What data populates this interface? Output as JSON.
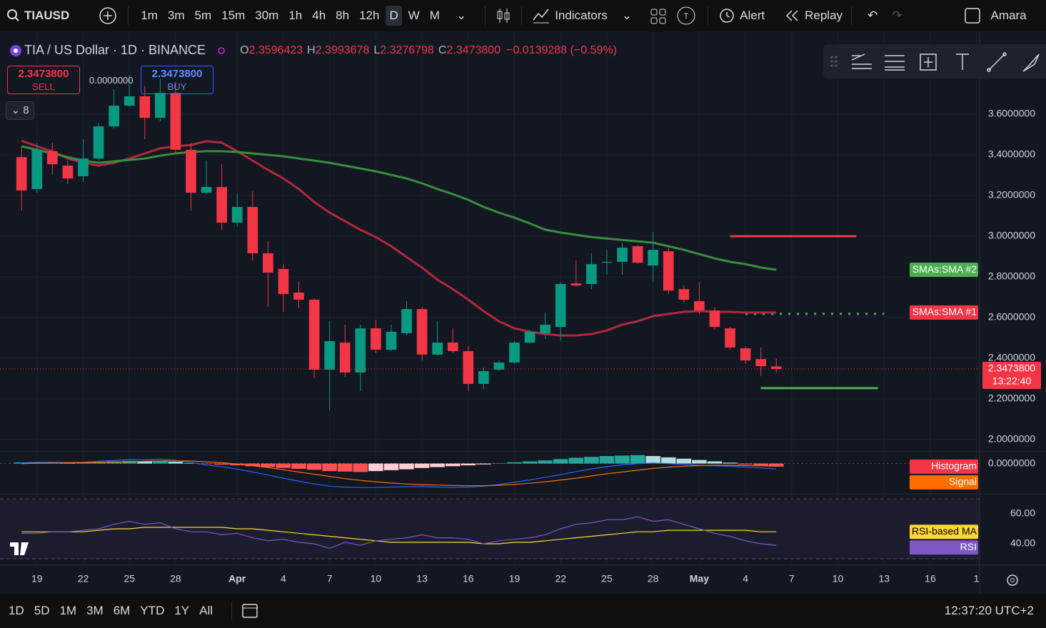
{
  "toolbar": {
    "symbol": "TIAUSD",
    "intervals": [
      "1m",
      "3m",
      "5m",
      "15m",
      "30m",
      "1h",
      "4h",
      "8h",
      "12h",
      "D",
      "W",
      "M"
    ],
    "active_interval": "D",
    "indicators": "Indicators",
    "alert": "Alert",
    "replay": "Replay",
    "user": "Amara"
  },
  "legend": {
    "title": "TIA / US Dollar · 1D · BINANCE",
    "items": [
      {
        "key": "O",
        "value": "2.3596423"
      },
      {
        "key": "H",
        "value": "2.3993678"
      },
      {
        "key": "L",
        "value": "2.3276798"
      },
      {
        "key": "C",
        "value": "2.3473800"
      }
    ],
    "change": "−0.0139288 (−0.59%)"
  },
  "trade": {
    "sell_price": "2.3473800",
    "sell": "SELL",
    "spread": "0.0000000",
    "buy_price": "2.3473800",
    "buy": "BUY",
    "indicator_count": "8"
  },
  "bottom_bar": {
    "ranges": [
      "1D",
      "5D",
      "1M",
      "3M",
      "6M",
      "YTD",
      "1Y",
      "All"
    ],
    "clock": "12:37:20 UTC+2"
  },
  "chart_data": [
    {
      "type": "candlestick",
      "up_color": "#089981",
      "down_color": "#f23645",
      "open": [
        3.389,
        3.232,
        3.418,
        3.347,
        3.295,
        3.382,
        3.54,
        3.642,
        3.688,
        3.582,
        3.705,
        3.425,
        3.214,
        3.242,
        3.067,
        3.144,
        2.916,
        2.839,
        2.723,
        2.688,
        2.344,
        2.477,
        2.33,
        2.547,
        2.442,
        2.523,
        2.642,
        2.418,
        2.477,
        2.435,
        2.274,
        2.344,
        2.379,
        2.477,
        2.523,
        2.554,
        2.768,
        2.765,
        2.87,
        2.874,
        2.951,
        2.856,
        2.926,
        2.74,
        2.681,
        2.635,
        2.547,
        2.449,
        2.396,
        2.3596423
      ],
      "high": [
        3.442,
        3.46,
        3.46,
        3.372,
        3.477,
        3.558,
        3.723,
        3.793,
        3.74,
        3.775,
        3.758,
        3.46,
        3.372,
        3.354,
        3.214,
        3.221,
        2.975,
        2.863,
        2.775,
        2.695,
        2.582,
        2.565,
        2.565,
        2.589,
        2.565,
        2.681,
        2.653,
        2.582,
        2.547,
        2.46,
        2.354,
        2.389,
        2.484,
        2.54,
        2.625,
        2.775,
        2.881,
        2.916,
        2.933,
        2.968,
        2.958,
        3.021,
        2.951,
        2.758,
        2.775,
        2.653,
        2.554,
        2.46,
        2.453,
        2.3993678
      ],
      "low": [
        3.126,
        3.214,
        3.302,
        3.256,
        3.267,
        3.372,
        3.53,
        3.635,
        3.477,
        3.565,
        3.407,
        3.126,
        3.207,
        3.032,
        3.046,
        2.881,
        2.653,
        2.628,
        2.646,
        2.302,
        2.144,
        2.309,
        2.239,
        2.425,
        2.435,
        2.512,
        2.389,
        2.414,
        2.425,
        2.239,
        2.249,
        2.337,
        2.372,
        2.47,
        2.495,
        2.484,
        2.751,
        2.74,
        2.811,
        2.811,
        2.863,
        2.775,
        2.716,
        2.67,
        2.618,
        2.54,
        2.442,
        2.372,
        2.312,
        2.3276798
      ],
      "close": [
        3.225,
        3.425,
        3.354,
        3.284,
        3.382,
        3.54,
        3.642,
        3.688,
        3.582,
        3.705,
        3.425,
        3.214,
        3.242,
        3.067,
        3.144,
        2.916,
        2.821,
        2.716,
        2.688,
        2.344,
        2.484,
        2.33,
        2.547,
        2.442,
        2.53,
        2.642,
        2.418,
        2.477,
        2.435,
        2.274,
        2.337,
        2.379,
        2.477,
        2.53,
        2.565,
        2.765,
        2.758,
        2.863,
        2.874,
        2.944,
        2.87,
        2.933,
        2.733,
        2.688,
        2.635,
        2.554,
        2.453,
        2.389,
        2.361,
        2.34738
      ],
      "price_label": "2.3473800",
      "countdown": "13:22:40",
      "series": [
        {
          "name": "SMAs:SMA #1",
          "color": "#b2283b",
          "values": [
            3.47,
            3.442,
            3.418,
            3.382,
            3.361,
            3.347,
            3.361,
            3.382,
            3.407,
            3.432,
            3.442,
            3.449,
            3.467,
            3.46,
            3.418,
            3.372,
            3.326,
            3.284,
            3.232,
            3.168,
            3.116,
            3.074,
            3.032,
            2.996,
            2.951,
            2.898,
            2.846,
            2.786,
            2.74,
            2.688,
            2.632,
            2.582,
            2.547,
            2.53,
            2.519,
            2.512,
            2.512,
            2.519,
            2.537,
            2.565,
            2.582,
            2.607,
            2.618,
            2.628,
            2.632,
            2.628,
            2.628,
            2.625,
            2.625,
            2.625
          ]
        },
        {
          "name": "SMAs:SMA #2",
          "color": "#388e3c",
          "values": [
            3.442,
            3.425,
            3.407,
            3.389,
            3.372,
            3.361,
            3.368,
            3.375,
            3.382,
            3.396,
            3.407,
            3.414,
            3.418,
            3.418,
            3.414,
            3.407,
            3.4,
            3.393,
            3.382,
            3.372,
            3.361,
            3.347,
            3.333,
            3.319,
            3.302,
            3.284,
            3.26,
            3.232,
            3.207,
            3.179,
            3.144,
            3.116,
            3.091,
            3.063,
            3.032,
            3.018,
            3.007,
            2.996,
            2.989,
            2.982,
            2.975,
            2.968,
            2.951,
            2.933,
            2.912,
            2.891,
            2.874,
            2.863,
            2.846,
            2.835
          ]
        }
      ],
      "levels": [
        {
          "value": 3.0,
          "color": "#f23645",
          "style": "solid"
        },
        {
          "value": 2.618,
          "color": "#4caf50",
          "style": "dotted"
        },
        {
          "value": 2.253,
          "color": "#4caf50",
          "style": "solid"
        }
      ],
      "xlim": [
        -1.4,
        62.2
      ],
      "xticks": [
        {
          "value": 1,
          "label": "19"
        },
        {
          "value": 4,
          "label": "22"
        },
        {
          "value": 7,
          "label": "25"
        },
        {
          "value": 10,
          "label": "28"
        },
        {
          "value": 14,
          "label": "Apr"
        },
        {
          "value": 17,
          "label": "4"
        },
        {
          "value": 20,
          "label": "7"
        },
        {
          "value": 23,
          "label": "10"
        },
        {
          "value": 26,
          "label": "13"
        },
        {
          "value": 29,
          "label": "16"
        },
        {
          "value": 32,
          "label": "19"
        },
        {
          "value": 35,
          "label": "22"
        },
        {
          "value": 38,
          "label": "25"
        },
        {
          "value": 41,
          "label": "28"
        },
        {
          "value": 44,
          "label": "May"
        },
        {
          "value": 47,
          "label": "4"
        },
        {
          "value": 50,
          "label": "7"
        },
        {
          "value": 53,
          "label": "10"
        },
        {
          "value": 56,
          "label": "13"
        },
        {
          "value": 59,
          "label": "16"
        },
        {
          "value": 62,
          "label": "1"
        }
      ],
      "ylim": [
        1.944,
        3.986
      ],
      "yticks": [
        {
          "value": 2.0,
          "label": "2.0000000"
        },
        {
          "value": 2.2,
          "label": "2.2000000"
        },
        {
          "value": 2.4,
          "label": "2.4000000"
        },
        {
          "value": 2.6,
          "label": "2.6000000"
        },
        {
          "value": 2.8,
          "label": "2.8000000"
        },
        {
          "value": 3.0,
          "label": "3.0000000"
        },
        {
          "value": 3.2,
          "label": "3.2000000"
        },
        {
          "value": 3.4,
          "label": "3.4000000"
        },
        {
          "value": 3.6,
          "label": "3.6000000"
        }
      ],
      "grid": true
    },
    {
      "type": "macd",
      "histogram_colors": [
        "#26a69a",
        "#b2dfdb",
        "#ffcdd2",
        "#ff5252"
      ],
      "series": [
        {
          "name": "Histogram",
          "kind": "histogram",
          "color": "#f23645",
          "values": [
            0.005,
            0.006,
            0.006,
            0.005,
            0.006,
            0.008,
            0.01,
            0.012,
            0.011,
            0.012,
            0.008,
            0.002,
            -0.002,
            -0.005,
            -0.008,
            -0.012,
            -0.016,
            -0.02,
            -0.024,
            -0.028,
            -0.034,
            -0.036,
            -0.038,
            -0.034,
            -0.03,
            -0.026,
            -0.02,
            -0.016,
            -0.012,
            -0.008,
            -0.004,
            0.002,
            0.006,
            0.01,
            0.014,
            0.02,
            0.026,
            0.03,
            0.034,
            0.036,
            0.038,
            0.034,
            0.028,
            0.022,
            0.016,
            0.01,
            0.004,
            -0.004,
            -0.01,
            -0.014
          ]
        },
        {
          "kind": "line",
          "color": "#2962ff",
          "values": [
            0.004,
            0.006,
            0.006,
            0.005,
            0.006,
            0.01,
            0.014,
            0.018,
            0.017,
            0.02,
            0.014,
            0.004,
            -0.006,
            -0.015,
            -0.025,
            -0.038,
            -0.052,
            -0.066,
            -0.08,
            -0.092,
            -0.102,
            -0.106,
            -0.108,
            -0.108,
            -0.106,
            -0.104,
            -0.104,
            -0.106,
            -0.108,
            -0.106,
            -0.102,
            -0.094,
            -0.084,
            -0.074,
            -0.062,
            -0.05,
            -0.036,
            -0.024,
            -0.014,
            -0.006,
            0.0,
            0.002,
            0.0,
            -0.004,
            -0.008,
            -0.01,
            -0.012,
            -0.016,
            -0.02,
            -0.024
          ]
        },
        {
          "name": "Signal",
          "kind": "line",
          "color": "#ff6d00",
          "values": [
            0.0,
            0.001,
            0.002,
            0.003,
            0.004,
            0.005,
            0.006,
            0.008,
            0.01,
            0.012,
            0.012,
            0.011,
            0.008,
            0.004,
            -0.002,
            -0.01,
            -0.018,
            -0.028,
            -0.038,
            -0.048,
            -0.058,
            -0.068,
            -0.076,
            -0.082,
            -0.088,
            -0.092,
            -0.095,
            -0.097,
            -0.099,
            -0.1,
            -0.1,
            -0.098,
            -0.094,
            -0.089,
            -0.082,
            -0.074,
            -0.066,
            -0.056,
            -0.046,
            -0.038,
            -0.03,
            -0.022,
            -0.016,
            -0.012,
            -0.009,
            -0.008,
            -0.008,
            -0.009,
            -0.01,
            -0.012
          ]
        }
      ],
      "ylim": [
        -0.13,
        0.05
      ],
      "yticks": [
        {
          "value": 0,
          "label": "0.0000000"
        }
      ]
    },
    {
      "type": "rsi",
      "series": [
        {
          "name": "RSI-based MA",
          "color": "#fdd835",
          "values": [
            48,
            48,
            48,
            48,
            48,
            49,
            50,
            50,
            51,
            51,
            51,
            51,
            51,
            51,
            50,
            50,
            49,
            48,
            47,
            46,
            45,
            44,
            43,
            42,
            41,
            41,
            41,
            41,
            41,
            41,
            40,
            40,
            41,
            41,
            42,
            43,
            44,
            45,
            46,
            47,
            48,
            48,
            49,
            49,
            49,
            49,
            49,
            49,
            48,
            48
          ]
        },
        {
          "name": "RSI",
          "color": "#7e57c2",
          "values": [
            47,
            47,
            48,
            48,
            49,
            50,
            53,
            55,
            53,
            54,
            50,
            48,
            48,
            46,
            47,
            44,
            42,
            43,
            41,
            40,
            37,
            41,
            39,
            42,
            43,
            44,
            46,
            44,
            44,
            43,
            40,
            42,
            43,
            44,
            46,
            50,
            53,
            54,
            56,
            56,
            58,
            55,
            56,
            53,
            50,
            47,
            45,
            42,
            40,
            39
          ]
        }
      ],
      "ylim": [
        30,
        70
      ],
      "yticks": [
        {
          "value": 60,
          "label": "60.00"
        },
        {
          "value": 40,
          "label": "40.00"
        }
      ]
    }
  ]
}
